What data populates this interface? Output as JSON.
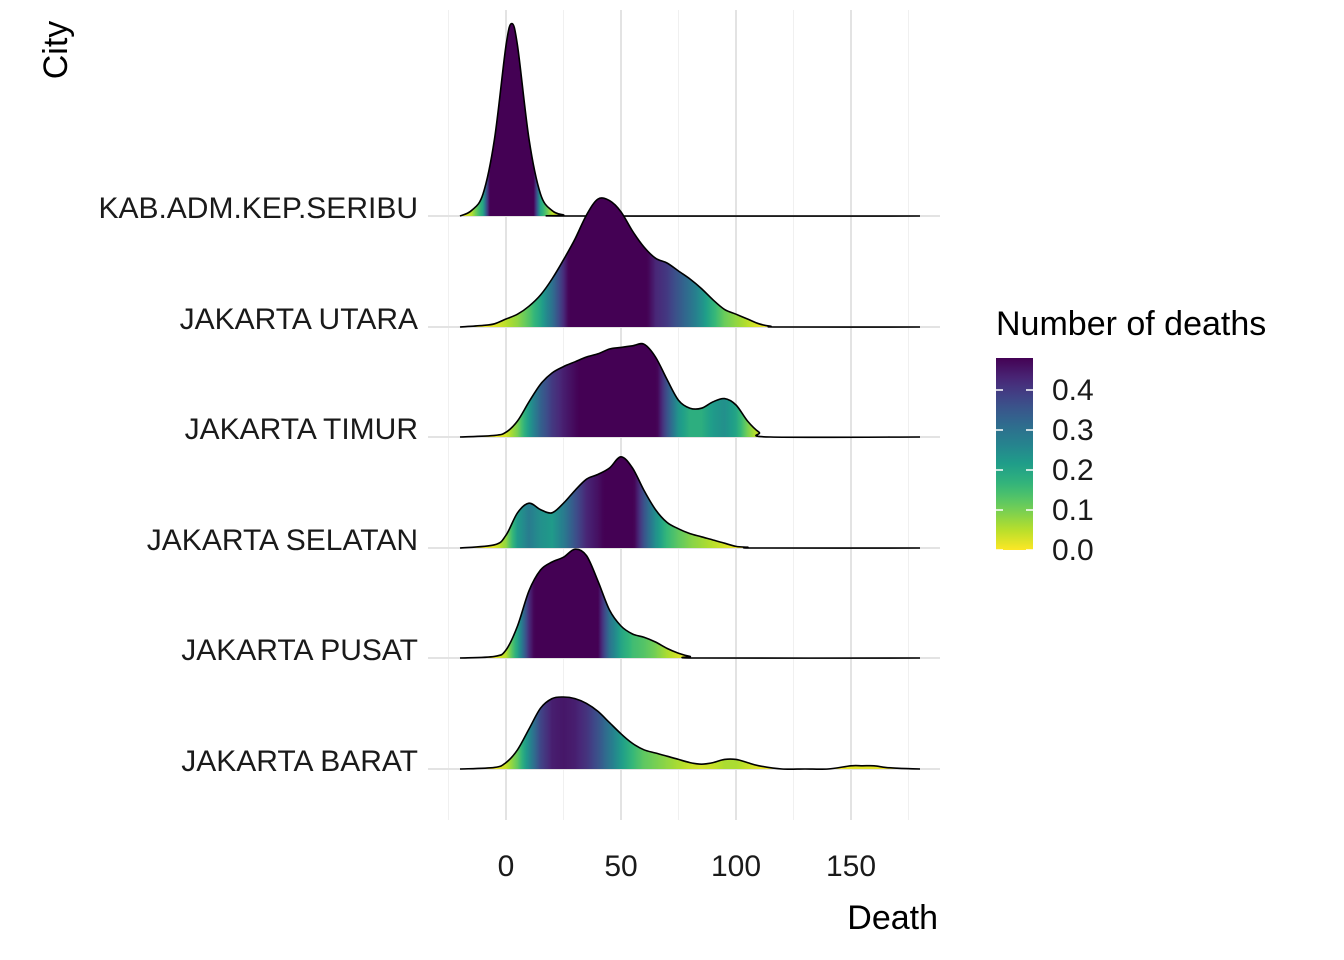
{
  "chart_data": {
    "type": "ridgeline",
    "xlabel": "Death",
    "ylabel": "City",
    "xlim": [
      -20,
      180
    ],
    "x_ticks": [
      0,
      50,
      100,
      150
    ],
    "x_tick_labels": [
      "0",
      "50",
      "100",
      "150"
    ],
    "grid": true,
    "legend": {
      "title": "Number of deaths",
      "placement": "right",
      "range": [
        0,
        0.48
      ],
      "ticks": [
        0.0,
        0.1,
        0.2,
        0.3,
        0.4
      ],
      "tick_labels": [
        "0.0",
        "0.1",
        "0.2",
        "0.3",
        "0.4"
      ],
      "palette": [
        "#FDE725",
        "#B4DE2C",
        "#6DCD59",
        "#35B779",
        "#1F9E89",
        "#26828E",
        "#31688E",
        "#3E4A89",
        "#482878",
        "#440154"
      ]
    },
    "series": [
      {
        "name": "JAKARTA BARAT",
        "x": [
          -20,
          -5,
          0,
          5,
          10,
          15,
          20,
          25,
          30,
          35,
          40,
          45,
          50,
          55,
          60,
          65,
          70,
          75,
          80,
          85,
          90,
          95,
          100,
          105,
          110,
          120,
          130,
          140,
          150,
          155,
          160,
          165,
          170,
          180
        ],
        "density": [
          0,
          0.01,
          0.04,
          0.12,
          0.25,
          0.38,
          0.44,
          0.45,
          0.44,
          0.41,
          0.36,
          0.29,
          0.22,
          0.16,
          0.12,
          0.1,
          0.08,
          0.06,
          0.04,
          0.03,
          0.04,
          0.06,
          0.06,
          0.04,
          0.02,
          0,
          0,
          0,
          0.02,
          0.02,
          0.02,
          0.01,
          0.005,
          0
        ]
      },
      {
        "name": "JAKARTA PUSAT",
        "x": [
          -20,
          -5,
          0,
          5,
          10,
          15,
          20,
          25,
          30,
          35,
          40,
          45,
          50,
          55,
          60,
          65,
          70,
          75,
          80,
          85,
          180
        ],
        "density": [
          0,
          0.01,
          0.05,
          0.2,
          0.42,
          0.55,
          0.6,
          0.63,
          0.68,
          0.64,
          0.48,
          0.3,
          0.2,
          0.15,
          0.13,
          0.1,
          0.06,
          0.03,
          0.01,
          0,
          0
        ]
      },
      {
        "name": "JAKARTA SELATAN",
        "x": [
          -20,
          -5,
          0,
          5,
          10,
          15,
          20,
          25,
          30,
          35,
          40,
          45,
          50,
          55,
          60,
          65,
          70,
          75,
          80,
          85,
          90,
          95,
          100,
          105,
          110,
          180
        ],
        "density": [
          0,
          0.02,
          0.08,
          0.22,
          0.28,
          0.24,
          0.22,
          0.28,
          0.36,
          0.43,
          0.46,
          0.5,
          0.57,
          0.5,
          0.36,
          0.24,
          0.16,
          0.12,
          0.09,
          0.07,
          0.05,
          0.03,
          0.01,
          0.005,
          0,
          0
        ]
      },
      {
        "name": "JAKARTA TIMUR",
        "x": [
          -20,
          -5,
          0,
          5,
          10,
          15,
          20,
          25,
          30,
          35,
          40,
          45,
          50,
          55,
          60,
          65,
          70,
          75,
          80,
          85,
          90,
          95,
          100,
          105,
          110,
          115,
          180
        ],
        "density": [
          0,
          0.01,
          0.03,
          0.1,
          0.22,
          0.33,
          0.4,
          0.44,
          0.47,
          0.5,
          0.52,
          0.55,
          0.56,
          0.57,
          0.58,
          0.5,
          0.36,
          0.23,
          0.18,
          0.18,
          0.22,
          0.24,
          0.2,
          0.1,
          0.03,
          0,
          0
        ]
      },
      {
        "name": "JAKARTA UTARA",
        "x": [
          -20,
          -10,
          -5,
          0,
          5,
          10,
          15,
          20,
          25,
          30,
          35,
          40,
          45,
          50,
          55,
          60,
          65,
          70,
          75,
          80,
          85,
          90,
          95,
          100,
          105,
          110,
          115,
          120,
          180
        ],
        "density": [
          0,
          0.01,
          0.02,
          0.05,
          0.08,
          0.13,
          0.2,
          0.3,
          0.42,
          0.55,
          0.7,
          0.8,
          0.79,
          0.72,
          0.6,
          0.5,
          0.43,
          0.4,
          0.35,
          0.3,
          0.24,
          0.17,
          0.11,
          0.08,
          0.05,
          0.02,
          0.005,
          0,
          0
        ]
      },
      {
        "name": "KAB.ADM.KEP.SERIBU",
        "x": [
          -20,
          -15,
          -10,
          -5,
          0,
          2.5,
          5,
          10,
          15,
          20,
          25,
          30,
          180
        ],
        "density": [
          0,
          0.05,
          0.2,
          0.7,
          1.55,
          1.75,
          1.55,
          0.7,
          0.2,
          0.05,
          0.01,
          0,
          0
        ]
      }
    ]
  }
}
